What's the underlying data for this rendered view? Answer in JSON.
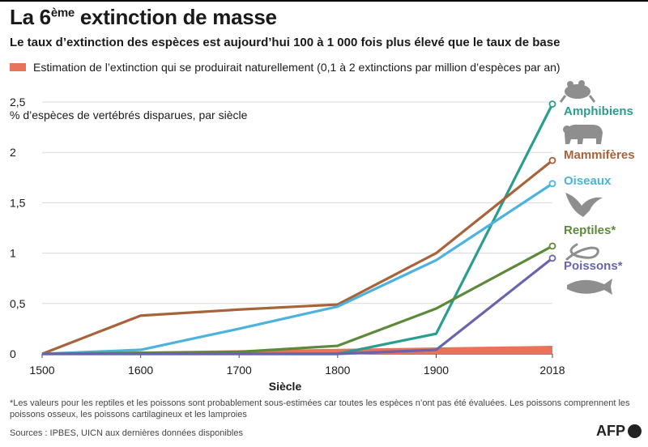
{
  "header": {
    "title_main": "La 6",
    "title_sup": "ème",
    "title_rest": " extinction de masse",
    "subtitle": "Le taux d’extinction des espèces est aujourd’hui 100 à 1 000 fois plus élevé que le taux de base"
  },
  "legend": {
    "label": "Estimation de l’extinction qui se produirait naturellement (0,1 à 2 extinctions par million d’espèces par an)",
    "color": "#e8735a"
  },
  "chart_data": {
    "type": "line",
    "x": [
      1500,
      1600,
      1700,
      1800,
      1900,
      2018
    ],
    "xlim": [
      1500,
      2018
    ],
    "ylim": [
      0,
      2.5
    ],
    "xlabel": "Siècle",
    "ylabel": "% d’espèces de vertébrés disparues, par siècle",
    "xticks": [
      1500,
      1600,
      1700,
      1800,
      1900,
      2018
    ],
    "xtick_labels": [
      "1500",
      "1600",
      "1700",
      "1800",
      "1900",
      "2018"
    ],
    "yticks": [
      0,
      0.5,
      1,
      1.5,
      2,
      2.5
    ],
    "ytick_labels": [
      "0",
      "0,5",
      "1",
      "1,5",
      "2",
      "2,5"
    ],
    "grid": true,
    "background_band": {
      "x": [
        1500,
        2018
      ],
      "y_low": [
        0,
        0
      ],
      "y_high": [
        0.01,
        0.08
      ],
      "color": "#e8735a"
    },
    "series": [
      {
        "name": "Amphibiens",
        "color": "#2a9d8f",
        "values": [
          0,
          0,
          0,
          0,
          0.2,
          2.48
        ],
        "icon": "frog-icon"
      },
      {
        "name": "Mammifères",
        "color": "#a8633a",
        "values": [
          0,
          0.38,
          0.44,
          0.49,
          1.0,
          1.92
        ],
        "icon": "bear-icon"
      },
      {
        "name": "Oiseaux",
        "color": "#4bb3de",
        "values": [
          0,
          0.04,
          0.25,
          0.47,
          0.93,
          1.69
        ],
        "icon": "eagle-icon"
      },
      {
        "name": "Reptiles*",
        "color": "#5c8a3a",
        "values": [
          0,
          0.01,
          0.02,
          0.08,
          0.45,
          1.07
        ],
        "icon": "snake-icon"
      },
      {
        "name": "Poissons*",
        "color": "#6a64ad",
        "values": [
          0,
          0,
          0,
          0,
          0.04,
          0.95
        ],
        "icon": "fish-icon"
      }
    ]
  },
  "footer": {
    "footnote": "*Les valeurs pour les reptiles et les poissons sont probablement sous-estimées car toutes les espèces n’ont pas été évaluées. Les poissons comprennent les poissons osseux, les poissons cartilagineux et les lamproies",
    "sources": "Sources : IPBES, UICN aux dernières données disponibles",
    "logo": "AFP"
  }
}
